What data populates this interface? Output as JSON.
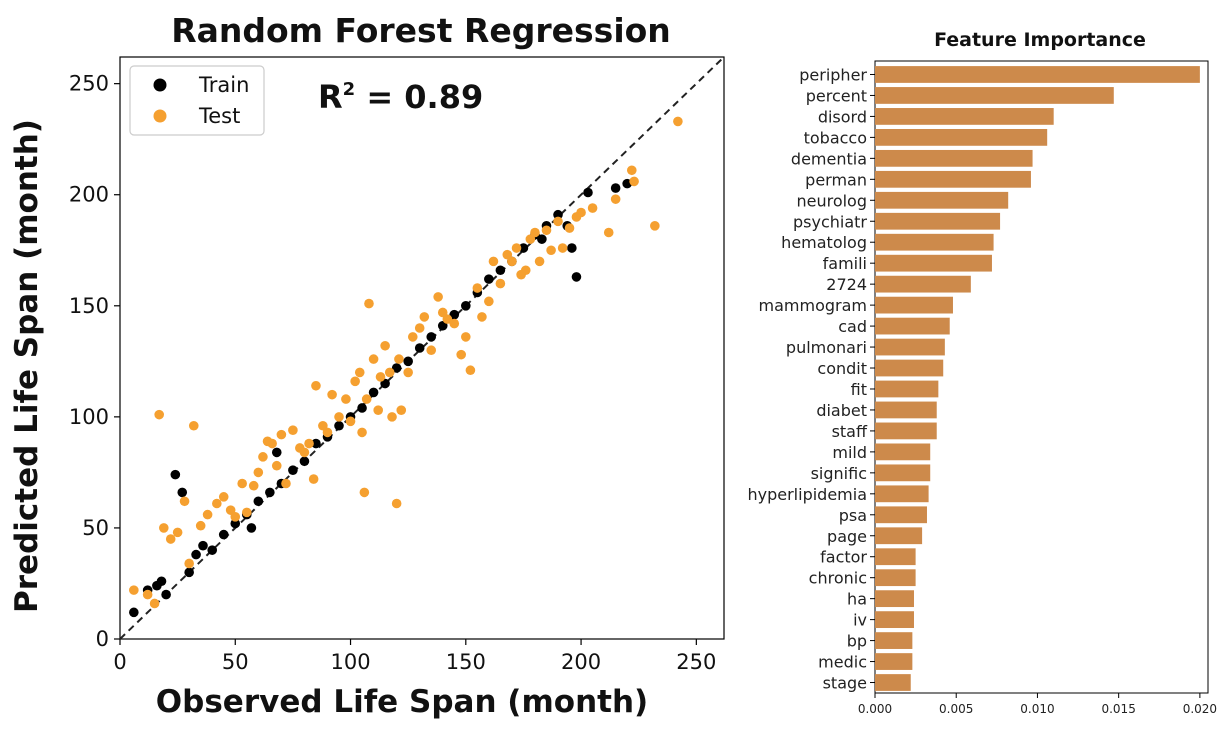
{
  "chart_data": [
    {
      "type": "scatter",
      "title": "Random Forest Regression",
      "xlabel": "Observed Life Span (month)",
      "ylabel": "Predicted Life Span (month)",
      "xlim": [
        0,
        262
      ],
      "ylim": [
        0,
        262
      ],
      "xticks": [
        0,
        50,
        100,
        150,
        200,
        250
      ],
      "yticks": [
        0,
        50,
        100,
        150,
        200,
        250
      ],
      "annotation": {
        "text_main": "R",
        "superscript": "2",
        "text_rest": " = 0.89"
      },
      "reference_line": "y = x (dashed)",
      "legend_position": "top-left",
      "series": [
        {
          "name": "Train",
          "color": "#000000",
          "points": [
            [
              6,
              12
            ],
            [
              12,
              22
            ],
            [
              16,
              24
            ],
            [
              18,
              26
            ],
            [
              20,
              20
            ],
            [
              24,
              74
            ],
            [
              27,
              66
            ],
            [
              30,
              30
            ],
            [
              33,
              38
            ],
            [
              36,
              42
            ],
            [
              40,
              40
            ],
            [
              45,
              47
            ],
            [
              50,
              52
            ],
            [
              55,
              56
            ],
            [
              57,
              50
            ],
            [
              60,
              62
            ],
            [
              65,
              66
            ],
            [
              68,
              84
            ],
            [
              70,
              70
            ],
            [
              75,
              76
            ],
            [
              80,
              80
            ],
            [
              85,
              88
            ],
            [
              90,
              91
            ],
            [
              95,
              96
            ],
            [
              100,
              100
            ],
            [
              105,
              104
            ],
            [
              110,
              111
            ],
            [
              115,
              115
            ],
            [
              120,
              122
            ],
            [
              125,
              125
            ],
            [
              130,
              131
            ],
            [
              135,
              136
            ],
            [
              140,
              141
            ],
            [
              145,
              146
            ],
            [
              150,
              150
            ],
            [
              155,
              156
            ],
            [
              160,
              162
            ],
            [
              165,
              166
            ],
            [
              170,
              170
            ],
            [
              175,
              176
            ],
            [
              180,
              182
            ],
            [
              183,
              180
            ],
            [
              185,
              186
            ],
            [
              190,
              191
            ],
            [
              194,
              186
            ],
            [
              196,
              176
            ],
            [
              198,
              163
            ],
            [
              203,
              201
            ],
            [
              215,
              203
            ],
            [
              220,
              205
            ]
          ]
        },
        {
          "name": "Test",
          "color": "#f5a030",
          "points": [
            [
              6,
              22
            ],
            [
              12,
              20
            ],
            [
              15,
              16
            ],
            [
              17,
              101
            ],
            [
              19,
              50
            ],
            [
              22,
              45
            ],
            [
              25,
              48
            ],
            [
              28,
              62
            ],
            [
              30,
              34
            ],
            [
              32,
              96
            ],
            [
              35,
              51
            ],
            [
              38,
              56
            ],
            [
              42,
              61
            ],
            [
              45,
              64
            ],
            [
              48,
              58
            ],
            [
              50,
              55
            ],
            [
              53,
              70
            ],
            [
              55,
              57
            ],
            [
              58,
              69
            ],
            [
              60,
              75
            ],
            [
              62,
              82
            ],
            [
              64,
              89
            ],
            [
              66,
              88
            ],
            [
              68,
              78
            ],
            [
              70,
              92
            ],
            [
              72,
              70
            ],
            [
              75,
              94
            ],
            [
              78,
              86
            ],
            [
              80,
              84
            ],
            [
              82,
              88
            ],
            [
              84,
              72
            ],
            [
              85,
              114
            ],
            [
              88,
              96
            ],
            [
              90,
              93
            ],
            [
              92,
              110
            ],
            [
              95,
              100
            ],
            [
              98,
              108
            ],
            [
              100,
              98
            ],
            [
              102,
              116
            ],
            [
              104,
              120
            ],
            [
              105,
              93
            ],
            [
              106,
              66
            ],
            [
              107,
              108
            ],
            [
              108,
              151
            ],
            [
              110,
              126
            ],
            [
              112,
              103
            ],
            [
              113,
              118
            ],
            [
              115,
              132
            ],
            [
              117,
              120
            ],
            [
              118,
              100
            ],
            [
              120,
              61
            ],
            [
              121,
              126
            ],
            [
              122,
              103
            ],
            [
              125,
              120
            ],
            [
              127,
              136
            ],
            [
              130,
              140
            ],
            [
              132,
              145
            ],
            [
              135,
              130
            ],
            [
              138,
              154
            ],
            [
              140,
              147
            ],
            [
              142,
              144
            ],
            [
              145,
              142
            ],
            [
              148,
              128
            ],
            [
              150,
              136
            ],
            [
              152,
              121
            ],
            [
              155,
              158
            ],
            [
              157,
              145
            ],
            [
              160,
              152
            ],
            [
              162,
              170
            ],
            [
              165,
              160
            ],
            [
              168,
              173
            ],
            [
              170,
              170
            ],
            [
              172,
              176
            ],
            [
              174,
              164
            ],
            [
              176,
              166
            ],
            [
              178,
              180
            ],
            [
              180,
              183
            ],
            [
              182,
              170
            ],
            [
              185,
              184
            ],
            [
              187,
              175
            ],
            [
              190,
              188
            ],
            [
              192,
              176
            ],
            [
              195,
              185
            ],
            [
              198,
              190
            ],
            [
              200,
              192
            ],
            [
              205,
              194
            ],
            [
              212,
              183
            ],
            [
              215,
              198
            ],
            [
              222,
              211
            ],
            [
              223,
              206
            ],
            [
              232,
              186
            ],
            [
              242,
              233
            ]
          ]
        }
      ]
    },
    {
      "type": "bar",
      "orientation": "horizontal",
      "title": "Feature Importance",
      "color": "#cd8a4b",
      "xlim": [
        0,
        0.0205
      ],
      "xticks": [
        "0.000",
        "0.005",
        "0.010",
        "0.015",
        "0.020"
      ],
      "categories": [
        "peripher",
        "percent",
        "disord",
        "tobacco",
        "dementia",
        "perman",
        "neurolog",
        "psychiatr",
        "hematolog",
        "famili",
        "2724",
        "mammogram",
        "cad",
        "pulmonari",
        "condit",
        "fit",
        "diabet",
        "staff",
        "mild",
        "signific",
        "hyperlipidemia",
        "psa",
        "page",
        "factor",
        "chronic",
        "ha",
        "iv",
        "bp",
        "medic",
        "stage"
      ],
      "values": [
        0.02,
        0.0147,
        0.011,
        0.0106,
        0.0097,
        0.0096,
        0.0082,
        0.0077,
        0.0073,
        0.0072,
        0.0059,
        0.0048,
        0.0046,
        0.0043,
        0.0042,
        0.0039,
        0.0038,
        0.0038,
        0.0034,
        0.0034,
        0.0033,
        0.0032,
        0.0029,
        0.0025,
        0.0025,
        0.0024,
        0.0024,
        0.0023,
        0.0023,
        0.0022
      ]
    }
  ]
}
